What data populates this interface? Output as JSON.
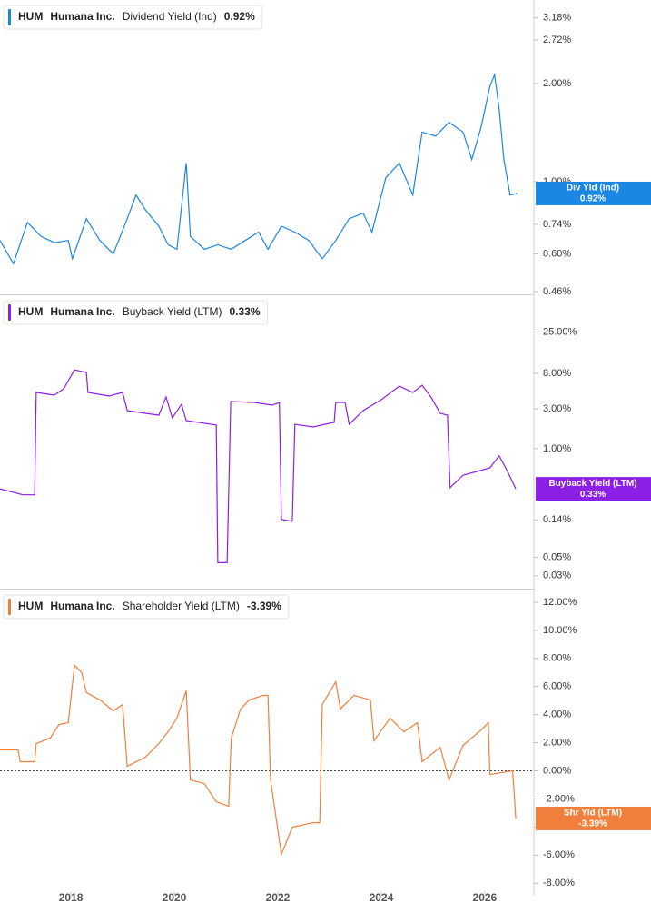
{
  "chart_data": [
    {
      "type": "line",
      "ticker": "HUM",
      "company": "Humana Inc.",
      "header_value": "0.92%",
      "badge_label": "Div Yld (Ind)",
      "badge_value": "0.92%",
      "log_scale": true,
      "xlim": [
        2016.63,
        2026.95
      ],
      "ylim": [
        0.451,
        3.61
      ],
      "yticks": [
        {
          "value": 3.18,
          "label": "3.18%"
        },
        {
          "value": 2.72,
          "label": "2.72%"
        },
        {
          "value": 2.0,
          "label": "2.00%"
        },
        {
          "value": 1.0,
          "label": "1.00%"
        },
        {
          "value": 0.74,
          "label": "0.74%"
        },
        {
          "value": 0.6,
          "label": "0.60%"
        },
        {
          "value": 0.46,
          "label": "0.46%"
        }
      ],
      "x": [
        2016.63,
        2016.89,
        2017.16,
        2017.42,
        2017.68,
        2017.95,
        2018.03,
        2018.3,
        2018.56,
        2018.82,
        2019.09,
        2019.26,
        2019.44,
        2019.7,
        2019.88,
        2020.05,
        2020.23,
        2020.31,
        2020.58,
        2020.84,
        2021.1,
        2021.37,
        2021.63,
        2021.81,
        2022.07,
        2022.33,
        2022.6,
        2022.86,
        2023.12,
        2023.38,
        2023.65,
        2023.82,
        2024.09,
        2024.35,
        2024.61,
        2024.79,
        2025.05,
        2025.31,
        2025.58,
        2025.75,
        2025.93,
        2026.1,
        2026.19,
        2026.28,
        2026.37,
        2026.49,
        2026.63
      ],
      "series": [
        {
          "name": "Dividend Yield (Ind)",
          "color": "#1c86e3",
          "values": [
            0.66,
            0.56,
            0.75,
            0.68,
            0.65,
            0.66,
            0.58,
            0.77,
            0.66,
            0.6,
            0.77,
            0.91,
            0.82,
            0.73,
            0.64,
            0.62,
            1.14,
            0.68,
            0.62,
            0.64,
            0.62,
            0.66,
            0.7,
            0.62,
            0.73,
            0.7,
            0.66,
            0.58,
            0.66,
            0.77,
            0.8,
            0.7,
            1.03,
            1.14,
            0.91,
            1.42,
            1.38,
            1.52,
            1.42,
            1.17,
            1.47,
            1.96,
            2.13,
            1.67,
            1.17,
            0.91,
            0.92
          ]
        }
      ]
    },
    {
      "type": "line",
      "ticker": "HUM",
      "company": "Humana Inc.",
      "header_value": "0.33%",
      "badge_label": "Buyback Yield (LTM)",
      "badge_value": "0.33%",
      "log_scale": true,
      "xlim": [
        2016.63,
        2026.95
      ],
      "ylim": [
        0.021,
        69
      ],
      "yticks": [
        {
          "value": 25,
          "label": "25.00%"
        },
        {
          "value": 8,
          "label": "8.00%"
        },
        {
          "value": 3,
          "label": "3.00%"
        },
        {
          "value": 1,
          "label": "1.00%"
        },
        {
          "value": 0.14,
          "label": "0.14%"
        },
        {
          "value": 0.05,
          "label": "0.05%"
        },
        {
          "value": 0.03,
          "label": "0.03%"
        }
      ],
      "x": [
        2016.63,
        2017.07,
        2017.3,
        2017.33,
        2017.68,
        2017.86,
        2018.07,
        2018.3,
        2018.33,
        2018.74,
        2019.0,
        2019.09,
        2019.44,
        2019.7,
        2019.84,
        2019.96,
        2020.14,
        2020.23,
        2020.81,
        2020.84,
        2021.02,
        2021.09,
        2021.54,
        2021.89,
        2022.03,
        2022.07,
        2022.28,
        2022.33,
        2022.68,
        2023.09,
        2023.12,
        2023.3,
        2023.38,
        2023.65,
        2024.0,
        2024.35,
        2024.61,
        2024.79,
        2024.96,
        2025.14,
        2025.28,
        2025.33,
        2025.58,
        2025.93,
        2026.1,
        2026.28,
        2026.45,
        2026.6
      ],
      "series": [
        {
          "name": "Buyback Yield (LTM)",
          "color": "#8b1fe6",
          "values": [
            0.33,
            0.28,
            0.28,
            4.72,
            4.38,
            5.2,
            8.8,
            8.2,
            4.72,
            4.27,
            4.72,
            2.86,
            2.65,
            2.52,
            4.17,
            2.34,
            3.41,
            2.17,
            1.92,
            0.043,
            0.043,
            3.67,
            3.58,
            3.32,
            3.58,
            0.142,
            0.135,
            1.96,
            1.82,
            2.07,
            3.58,
            3.58,
            1.96,
            2.86,
            3.86,
            5.62,
            4.72,
            5.76,
            4.17,
            2.65,
            2.52,
            0.34,
            0.48,
            0.55,
            0.59,
            0.82,
            0.52,
            0.33
          ]
        }
      ]
    },
    {
      "type": "line",
      "ticker": "HUM",
      "company": "Humana Inc.",
      "header_value": "-3.39%",
      "badge_label": "Shr Yld (LTM)",
      "badge_value": "-3.39%",
      "log_scale": false,
      "zero_line": true,
      "xlim": [
        2016.63,
        2026.95
      ],
      "ylim": [
        -8.5,
        12.9
      ],
      "xticks": [
        2018,
        2020,
        2022,
        2024,
        2026
      ],
      "yticks": [
        {
          "value": 12,
          "label": "12.00%"
        },
        {
          "value": 10,
          "label": "10.00%"
        },
        {
          "value": 8,
          "label": "8.00%"
        },
        {
          "value": 6,
          "label": "6.00%"
        },
        {
          "value": 4,
          "label": "4.00%"
        },
        {
          "value": 2,
          "label": "2.00%"
        },
        {
          "value": 0,
          "label": "0.00%"
        },
        {
          "value": -2,
          "label": "-2.00%"
        },
        {
          "value": -4,
          "label": "-4.00%"
        },
        {
          "value": -6,
          "label": "-6.00%"
        },
        {
          "value": -8,
          "label": "-8.00%"
        }
      ],
      "x": [
        2016.63,
        2016.98,
        2017.02,
        2017.3,
        2017.33,
        2017.6,
        2017.77,
        2017.95,
        2018.07,
        2018.21,
        2018.3,
        2018.56,
        2018.82,
        2019.0,
        2019.09,
        2019.44,
        2019.7,
        2019.88,
        2020.05,
        2020.23,
        2020.31,
        2020.58,
        2020.81,
        2021.05,
        2021.1,
        2021.28,
        2021.45,
        2021.72,
        2021.81,
        2021.86,
        2022.07,
        2022.28,
        2022.68,
        2022.81,
        2022.86,
        2023.12,
        2023.21,
        2023.47,
        2023.79,
        2023.86,
        2024.17,
        2024.44,
        2024.7,
        2024.79,
        2025.14,
        2025.31,
        2025.58,
        2025.93,
        2026.07,
        2026.1,
        2026.54,
        2026.6
      ],
      "series": [
        {
          "name": "Shareholder Yield (LTM)",
          "color": "#f07f3c",
          "values": [
            1.49,
            1.49,
            0.65,
            0.65,
            1.94,
            2.33,
            3.3,
            3.43,
            7.51,
            6.99,
            5.57,
            5.05,
            4.27,
            4.72,
            0.32,
            0.97,
            1.94,
            2.78,
            3.75,
            5.7,
            -0.65,
            -0.91,
            -2.2,
            -2.52,
            2.33,
            4.4,
            5.05,
            5.37,
            5.37,
            -0.65,
            -5.95,
            -4.01,
            -3.69,
            -3.69,
            4.72,
            6.34,
            4.4,
            5.37,
            5.05,
            2.14,
            3.75,
            2.78,
            3.43,
            0.65,
            1.68,
            -0.65,
            1.81,
            2.91,
            3.43,
            -0.26,
            0,
            -3.39
          ]
        }
      ]
    }
  ]
}
